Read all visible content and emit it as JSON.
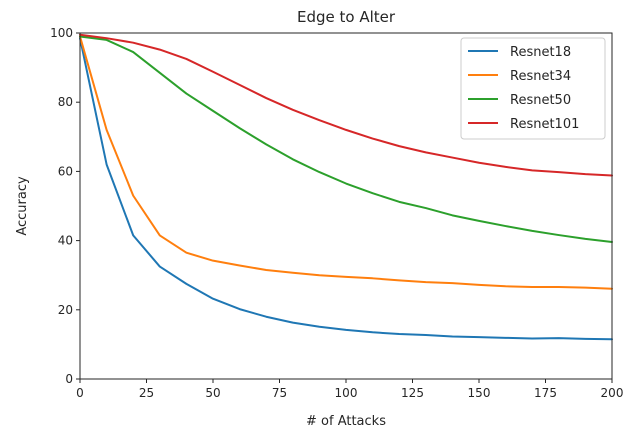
{
  "chart_data": {
    "type": "line",
    "title": "Edge to Alter",
    "xlabel": "# of Attacks",
    "ylabel": "Accuracy",
    "xlim": [
      0,
      200
    ],
    "ylim": [
      0,
      100
    ],
    "xticks": [
      "0",
      "25",
      "50",
      "75",
      "100",
      "125",
      "150",
      "175",
      "200"
    ],
    "yticks": [
      "0",
      "20",
      "40",
      "60",
      "80",
      "100"
    ],
    "grid": false,
    "legend_position": "top-right",
    "x": [
      0,
      10,
      20,
      30,
      40,
      50,
      60,
      70,
      80,
      90,
      100,
      110,
      120,
      130,
      140,
      150,
      160,
      170,
      180,
      190,
      200
    ],
    "series": [
      {
        "name": "Resnet18",
        "color": "#1f77b4",
        "values": [
          98.5,
          62,
          41.5,
          32.5,
          27.5,
          23.2,
          20.2,
          18,
          16.3,
          15.1,
          14.2,
          13.5,
          13,
          12.7,
          12.3,
          12.1,
          11.9,
          11.7,
          11.8,
          11.6,
          11.5
        ]
      },
      {
        "name": "Resnet34",
        "color": "#ff7f0e",
        "values": [
          99,
          72,
          53,
          41.5,
          36.5,
          34.2,
          32.8,
          31.5,
          30.7,
          30,
          29.5,
          29.1,
          28.5,
          28,
          27.7,
          27.2,
          26.8,
          26.6,
          26.6,
          26.4,
          26.1
        ]
      },
      {
        "name": "Resnet50",
        "color": "#2ca02c",
        "values": [
          99,
          98,
          94.5,
          88.5,
          82.5,
          77.5,
          72.5,
          67.8,
          63.5,
          59.8,
          56.5,
          53.7,
          51.2,
          49.4,
          47.3,
          45.7,
          44.2,
          42.8,
          41.6,
          40.5,
          39.6
        ]
      },
      {
        "name": "Resnet101",
        "color": "#d62728",
        "values": [
          99.5,
          98.5,
          97.2,
          95.2,
          92.5,
          88.8,
          85,
          81.2,
          77.8,
          74.8,
          72,
          69.5,
          67.3,
          65.5,
          64,
          62.5,
          61.3,
          60.3,
          59.8,
          59.2,
          58.8
        ]
      }
    ]
  }
}
